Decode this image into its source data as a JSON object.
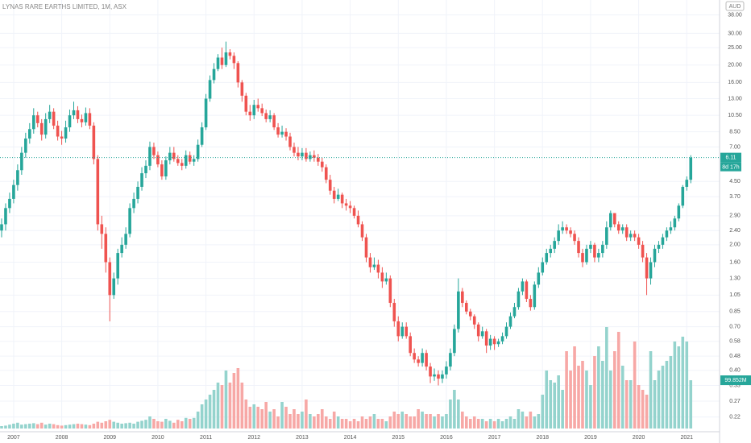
{
  "chart_data": {
    "type": "candlestick",
    "title": "LYNAS RARE EARTHS LIMITED, 1M, ASX",
    "currency": "AUD",
    "countdown": "8d 17h",
    "log_scale": true,
    "grid": true,
    "up_color": "#26a69a",
    "down_color": "#ef5350",
    "volume_up_color": "#94d3cd",
    "volume_down_color": "#f7a8a6",
    "ylim": [
      0.19,
      46
    ],
    "yticks": [
      {
        "value": 38,
        "label": "38.00"
      },
      {
        "value": 30,
        "label": "30.00"
      },
      {
        "value": 25,
        "label": "25.00"
      },
      {
        "value": 20,
        "label": "20.00"
      },
      {
        "value": 16,
        "label": "16.00"
      },
      {
        "value": 13,
        "label": "13.00"
      },
      {
        "value": 10.5,
        "label": "10.50"
      },
      {
        "value": 8.5,
        "label": "8.50"
      },
      {
        "value": 7,
        "label": "7.00"
      },
      {
        "value": 4.5,
        "label": "4.50"
      },
      {
        "value": 3.7,
        "label": "3.70"
      },
      {
        "value": 2.9,
        "label": "2.90"
      },
      {
        "value": 2.4,
        "label": "2.40"
      },
      {
        "value": 2,
        "label": "2.00"
      },
      {
        "value": 1.6,
        "label": "1.60"
      },
      {
        "value": 1.3,
        "label": "1.30"
      },
      {
        "value": 1.05,
        "label": "1.05"
      },
      {
        "value": 0.85,
        "label": "0.85"
      },
      {
        "value": 0.7,
        "label": "0.70"
      },
      {
        "value": 0.58,
        "label": "0.58"
      },
      {
        "value": 0.48,
        "label": "0.48"
      },
      {
        "value": 0.4,
        "label": "0.40"
      },
      {
        "value": 0.33,
        "label": "0.33"
      },
      {
        "value": 0.27,
        "label": "0.27"
      },
      {
        "value": 0.22,
        "label": "0.22"
      }
    ],
    "xlim": [
      0,
      176
    ],
    "xticks": [
      {
        "value": 3,
        "label": "2007"
      },
      {
        "value": 15,
        "label": "2008"
      },
      {
        "value": 27,
        "label": "2009"
      },
      {
        "value": 39,
        "label": "2010"
      },
      {
        "value": 51,
        "label": "2011"
      },
      {
        "value": 63,
        "label": "2012"
      },
      {
        "value": 75,
        "label": "2013"
      },
      {
        "value": 87,
        "label": "2014"
      },
      {
        "value": 99,
        "label": "2015"
      },
      {
        "value": 111,
        "label": "2016"
      },
      {
        "value": 123,
        "label": "2017"
      },
      {
        "value": 135,
        "label": "2018"
      },
      {
        "value": 147,
        "label": "2019"
      },
      {
        "value": 159,
        "label": "2020"
      },
      {
        "value": 171,
        "label": "2021"
      }
    ],
    "open": [
      2.4,
      2.6,
      3.2,
      3.6,
      4.3,
      5.2,
      6.5,
      7.8,
      8.8,
      10.5,
      9.5,
      8.2,
      10.0,
      11.0,
      9.2,
      8.0,
      7.8,
      9.0,
      10.5,
      11.2,
      10.0,
      9.6,
      10.8,
      9.2,
      6.0,
      2.6,
      2.3,
      1.6,
      1.05,
      1.3,
      1.8,
      2.0,
      2.3,
      3.2,
      3.6,
      4.2,
      5.0,
      5.5,
      7.0,
      6.3,
      5.6,
      4.8,
      5.9,
      6.5,
      6.0,
      5.7,
      5.5,
      6.3,
      5.8,
      6.0,
      7.2,
      9.0,
      13.0,
      16.5,
      19.0,
      22.0,
      20.0,
      23.5,
      22.5,
      20.5,
      16.0,
      13.5,
      11.0,
      10.5,
      12.0,
      11.5,
      10.8,
      10.0,
      10.5,
      9.0,
      8.2,
      8.5,
      8.0,
      7.0,
      6.5,
      6.2,
      6.5,
      6.0,
      6.3,
      6.1,
      5.8,
      5.4,
      4.6,
      4.0,
      3.6,
      3.8,
      3.4,
      3.3,
      3.2,
      2.9,
      2.6,
      2.2,
      1.7,
      1.5,
      1.55,
      1.4,
      1.25,
      1.3,
      0.95,
      0.75,
      0.62,
      0.7,
      0.62,
      0.5,
      0.46,
      0.44,
      0.5,
      0.42,
      0.37,
      0.38,
      0.36,
      0.38,
      0.42,
      0.5,
      0.68,
      1.1,
      0.95,
      0.85,
      0.8,
      0.72,
      0.62,
      0.66,
      0.55,
      0.6,
      0.56,
      0.58,
      0.62,
      0.7,
      0.8,
      0.9,
      1.1,
      1.25,
      1.0,
      0.9,
      1.2,
      1.4,
      1.6,
      1.8,
      1.9,
      2.1,
      2.4,
      2.5,
      2.4,
      2.3,
      2.1,
      1.8,
      1.6,
      1.9,
      2.0,
      1.7,
      1.8,
      2.0,
      2.5,
      3.0,
      2.6,
      2.4,
      2.5,
      2.2,
      2.3,
      2.2,
      2.0,
      1.7,
      1.3,
      1.6,
      1.9,
      2.0,
      2.2,
      2.4,
      2.5,
      2.8,
      3.3,
      4.2,
      4.6
    ],
    "high": [
      2.8,
      3.4,
      3.9,
      4.6,
      5.6,
      7.0,
      8.4,
      9.5,
      11.5,
      11.0,
      10.0,
      10.8,
      12.0,
      11.5,
      9.8,
      8.6,
      9.8,
      11.3,
      12.5,
      11.8,
      10.6,
      11.6,
      11.5,
      9.6,
      6.3,
      2.9,
      2.5,
      1.7,
      1.4,
      1.9,
      2.2,
      2.5,
      3.4,
      3.9,
      4.5,
      5.4,
      5.9,
      7.5,
      7.4,
      6.6,
      5.9,
      6.2,
      7.0,
      7.0,
      6.3,
      6.0,
      6.7,
      6.6,
      6.3,
      7.7,
      9.6,
      13.8,
      17.5,
      20.5,
      23.0,
      25.0,
      27.0,
      24.5,
      23.5,
      21.0,
      16.5,
      14.0,
      12.0,
      12.8,
      13.0,
      12.2,
      11.3,
      11.2,
      10.8,
      9.5,
      9.2,
      8.9,
      8.4,
      7.4,
      7.0,
      6.9,
      6.9,
      6.6,
      6.7,
      6.4,
      6.1,
      5.6,
      4.9,
      4.2,
      4.1,
      3.9,
      3.6,
      3.5,
      3.3,
      3.1,
      2.7,
      2.3,
      1.8,
      1.7,
      1.65,
      1.5,
      1.4,
      1.35,
      1.0,
      0.8,
      0.74,
      0.74,
      0.65,
      0.53,
      0.48,
      0.53,
      0.52,
      0.44,
      0.41,
      0.4,
      0.4,
      0.45,
      0.53,
      0.72,
      1.3,
      1.15,
      0.98,
      0.88,
      0.82,
      0.74,
      0.7,
      0.68,
      0.63,
      0.62,
      0.6,
      0.65,
      0.74,
      0.84,
      0.95,
      1.15,
      1.3,
      1.28,
      1.05,
      1.25,
      1.5,
      1.7,
      1.9,
      2.0,
      2.2,
      2.6,
      2.7,
      2.6,
      2.5,
      2.4,
      2.2,
      1.9,
      2.0,
      2.1,
      2.05,
      1.9,
      2.1,
      2.7,
      3.1,
      3.0,
      2.7,
      2.6,
      2.6,
      2.4,
      2.4,
      2.3,
      2.1,
      1.8,
      1.7,
      2.0,
      2.1,
      2.3,
      2.5,
      2.7,
      2.9,
      3.4,
      4.3,
      4.8,
      6.3
    ],
    "low": [
      2.2,
      2.4,
      3.0,
      3.4,
      4.0,
      4.9,
      6.1,
      7.3,
      8.3,
      9.0,
      7.6,
      7.8,
      9.5,
      8.8,
      7.6,
      7.2,
      7.4,
      8.5,
      10.0,
      9.5,
      9.0,
      9.2,
      8.8,
      5.6,
      2.4,
      1.9,
      1.4,
      0.75,
      1.0,
      1.2,
      1.7,
      1.9,
      2.2,
      3.0,
      3.4,
      4.0,
      4.7,
      5.2,
      6.0,
      5.4,
      4.6,
      4.6,
      5.6,
      5.8,
      5.5,
      5.2,
      5.3,
      5.6,
      5.5,
      5.8,
      7.0,
      8.7,
      12.5,
      15.8,
      18.5,
      19.0,
      19.5,
      21.5,
      19.0,
      15.0,
      12.5,
      10.5,
      9.8,
      10.0,
      11.0,
      10.4,
      9.6,
      9.6,
      8.7,
      7.9,
      7.9,
      7.6,
      6.7,
      6.2,
      5.9,
      5.9,
      5.8,
      5.8,
      5.8,
      5.5,
      5.1,
      4.4,
      3.8,
      3.4,
      3.5,
      3.2,
      3.1,
      3.0,
      2.8,
      2.5,
      2.1,
      1.6,
      1.4,
      1.45,
      1.3,
      1.15,
      1.2,
      0.9,
      0.7,
      0.58,
      0.6,
      0.6,
      0.48,
      0.44,
      0.42,
      0.42,
      0.4,
      0.34,
      0.35,
      0.33,
      0.34,
      0.36,
      0.4,
      0.48,
      0.65,
      0.9,
      0.82,
      0.76,
      0.68,
      0.58,
      0.6,
      0.5,
      0.52,
      0.52,
      0.54,
      0.56,
      0.6,
      0.68,
      0.78,
      0.87,
      1.05,
      0.96,
      0.86,
      0.87,
      1.15,
      1.35,
      1.55,
      1.7,
      1.8,
      2.0,
      2.3,
      2.3,
      2.2,
      2.0,
      1.7,
      1.5,
      1.55,
      1.8,
      1.6,
      1.6,
      1.7,
      1.9,
      2.4,
      2.5,
      2.3,
      2.3,
      2.1,
      2.1,
      2.1,
      1.9,
      1.6,
      1.05,
      1.2,
      1.5,
      1.8,
      1.9,
      2.1,
      2.3,
      2.4,
      2.7,
      3.2,
      4.0,
      4.4
    ],
    "close": [
      2.6,
      3.2,
      3.6,
      4.3,
      5.2,
      6.5,
      7.8,
      8.8,
      10.5,
      9.5,
      8.2,
      10.0,
      11.0,
      9.2,
      8.0,
      7.8,
      9.0,
      10.5,
      11.2,
      10.0,
      9.6,
      10.8,
      9.2,
      6.0,
      2.6,
      2.3,
      1.6,
      1.05,
      1.3,
      1.8,
      2.0,
      2.3,
      3.2,
      3.6,
      4.2,
      5.0,
      5.5,
      7.0,
      6.3,
      5.6,
      4.8,
      5.9,
      6.5,
      6.0,
      5.7,
      5.5,
      6.3,
      5.8,
      6.0,
      7.2,
      9.0,
      13.0,
      16.5,
      19.0,
      22.0,
      20.0,
      23.5,
      22.5,
      20.5,
      16.0,
      13.5,
      11.0,
      10.5,
      12.0,
      11.5,
      10.8,
      10.0,
      10.5,
      9.0,
      8.2,
      8.5,
      8.0,
      7.0,
      6.5,
      6.2,
      6.5,
      6.0,
      6.3,
      6.1,
      5.8,
      5.4,
      4.6,
      4.0,
      3.6,
      3.8,
      3.4,
      3.3,
      3.2,
      2.9,
      2.6,
      2.2,
      1.7,
      1.5,
      1.55,
      1.4,
      1.25,
      1.3,
      0.95,
      0.75,
      0.62,
      0.7,
      0.62,
      0.5,
      0.46,
      0.44,
      0.5,
      0.42,
      0.37,
      0.38,
      0.36,
      0.38,
      0.42,
      0.5,
      0.68,
      1.1,
      0.95,
      0.85,
      0.8,
      0.72,
      0.62,
      0.66,
      0.55,
      0.6,
      0.56,
      0.58,
      0.62,
      0.7,
      0.8,
      0.9,
      1.1,
      1.25,
      1.0,
      0.9,
      1.2,
      1.4,
      1.6,
      1.8,
      1.9,
      2.1,
      2.4,
      2.5,
      2.4,
      2.3,
      2.1,
      1.8,
      1.6,
      1.9,
      2.0,
      1.7,
      1.8,
      2.0,
      2.5,
      3.0,
      2.6,
      2.4,
      2.5,
      2.2,
      2.3,
      2.2,
      2.0,
      1.7,
      1.3,
      1.6,
      1.9,
      2.0,
      2.2,
      2.4,
      2.5,
      2.8,
      3.3,
      4.2,
      4.6,
      6.11
    ],
    "vlim": [
      0,
      400
    ],
    "volume": [
      5,
      6,
      8,
      10,
      12,
      8,
      9,
      10,
      11,
      9,
      12,
      8,
      10,
      9,
      7,
      6,
      7,
      8,
      9,
      10,
      9,
      8,
      7,
      10,
      14,
      12,
      15,
      18,
      14,
      12,
      10,
      11,
      12,
      10,
      14,
      16,
      18,
      25,
      20,
      15,
      14,
      20,
      16,
      12,
      18,
      15,
      22,
      20,
      22,
      35,
      50,
      60,
      70,
      80,
      95,
      90,
      120,
      95,
      115,
      125,
      95,
      60,
      45,
      50,
      45,
      40,
      55,
      35,
      40,
      25,
      55,
      45,
      30,
      40,
      30,
      35,
      60,
      30,
      25,
      30,
      40,
      25,
      20,
      35,
      25,
      20,
      20,
      15,
      20,
      15,
      25,
      20,
      25,
      30,
      20,
      20,
      15,
      25,
      35,
      30,
      35,
      30,
      25,
      25,
      40,
      35,
      30,
      30,
      25,
      30,
      25,
      30,
      60,
      80,
      60,
      35,
      25,
      20,
      25,
      20,
      20,
      15,
      20,
      15,
      20,
      15,
      20,
      25,
      20,
      40,
      35,
      25,
      35,
      25,
      30,
      70,
      120,
      100,
      95,
      110,
      80,
      160,
      120,
      170,
      130,
      140,
      120,
      90,
      150,
      170,
      140,
      210,
      120,
      160,
      200,
      130,
      100,
      100,
      180,
      90,
      80,
      70,
      160,
      100,
      120,
      130,
      140,
      150,
      180,
      170,
      190,
      180,
      99.852
    ],
    "last_volume_label": "99.852M"
  }
}
